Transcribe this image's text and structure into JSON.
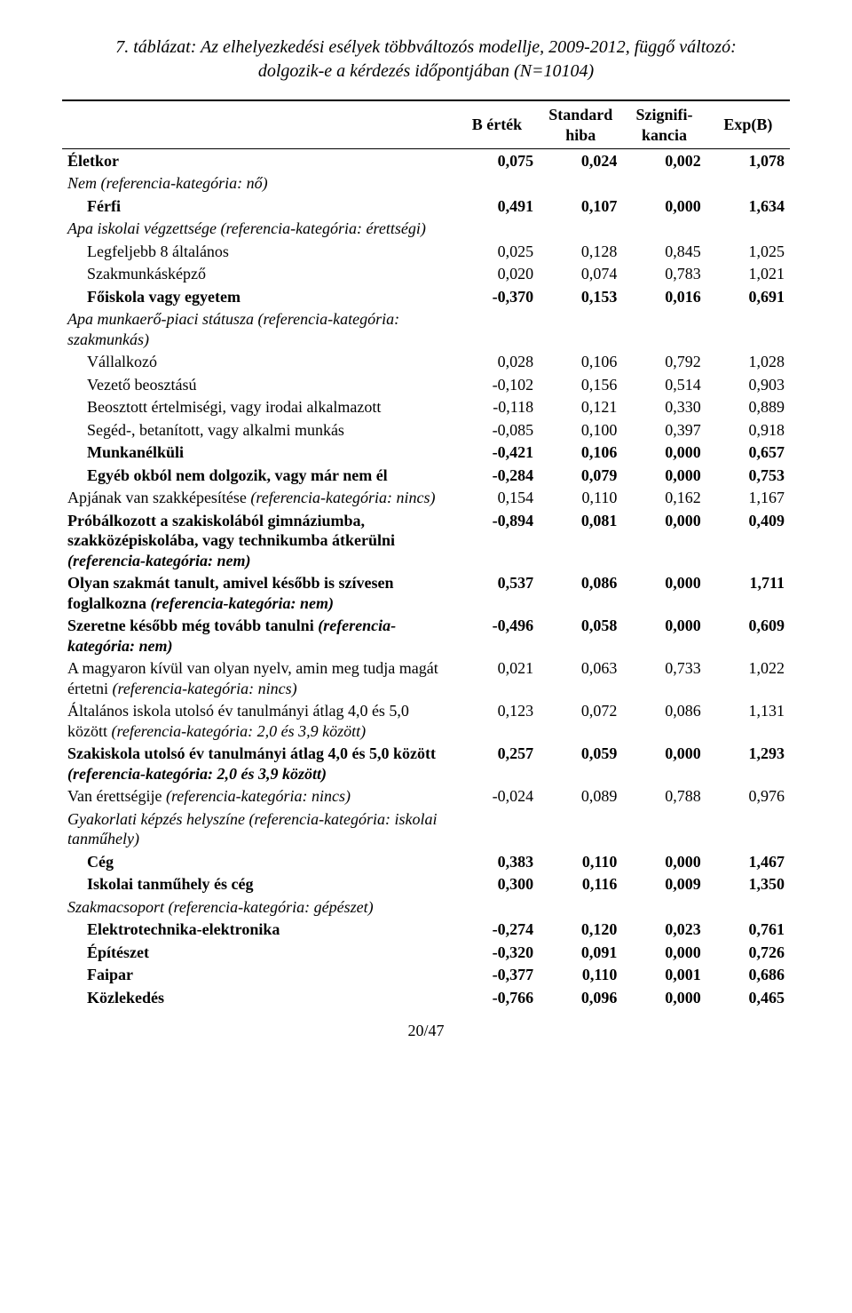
{
  "caption_line1": "7. táblázat: Az elhelyezkedési esélyek többváltozós modellje, 2009-2012, függő változó:",
  "caption_line2": "dolgozik-e a kérdezés időpontjában (N=10104)",
  "headers": {
    "c1": "B érték",
    "c2a": "Standard",
    "c2b": "hiba",
    "c3a": "Szignifi-",
    "c3b": "kancia",
    "c4": "Exp(B)"
  },
  "rows": [
    {
      "label": "Életkor",
      "level": 0,
      "bold": true,
      "b": "0,075",
      "se": "0,024",
      "sig": "0,002",
      "exp": "1,078"
    },
    {
      "label": "Nem (referencia-kategória: nő)",
      "level": 0,
      "italic": true
    },
    {
      "label": "Férfi",
      "level": 1,
      "bold": true,
      "b": "0,491",
      "se": "0,107",
      "sig": "0,000",
      "exp": "1,634"
    },
    {
      "label": "Apa iskolai végzettsége (referencia-kategória: érettségi)",
      "level": 0,
      "italic": true
    },
    {
      "label": "Legfeljebb 8 általános",
      "level": 1,
      "b": "0,025",
      "se": "0,128",
      "sig": "0,845",
      "exp": "1,025"
    },
    {
      "label": "Szakmunkásképző",
      "level": 1,
      "b": "0,020",
      "se": "0,074",
      "sig": "0,783",
      "exp": "1,021"
    },
    {
      "label": "Főiskola vagy egyetem",
      "level": 1,
      "bold": true,
      "b": "-0,370",
      "se": "0,153",
      "sig": "0,016",
      "exp": "0,691"
    },
    {
      "label": "Apa munkaerő-piaci státusza (referencia-kategória: szakmunkás)",
      "level": 0,
      "italic": true
    },
    {
      "label": "Vállalkozó",
      "level": 1,
      "b": "0,028",
      "se": "0,106",
      "sig": "0,792",
      "exp": "1,028"
    },
    {
      "label": "Vezető beosztású",
      "level": 1,
      "b": "-0,102",
      "se": "0,156",
      "sig": "0,514",
      "exp": "0,903"
    },
    {
      "label": "Beosztott értelmiségi, vagy irodai alkalmazott",
      "level": 1,
      "b": "-0,118",
      "se": "0,121",
      "sig": "0,330",
      "exp": "0,889"
    },
    {
      "label": "Segéd-, betanított, vagy alkalmi munkás",
      "level": 1,
      "b": "-0,085",
      "se": "0,100",
      "sig": "0,397",
      "exp": "0,918"
    },
    {
      "label": "Munkanélküli",
      "level": 1,
      "bold": true,
      "b": "-0,421",
      "se": "0,106",
      "sig": "0,000",
      "exp": "0,657"
    },
    {
      "label": "Egyéb okból nem dolgozik, vagy már nem él",
      "level": 1,
      "bold": true,
      "b": "-0,284",
      "se": "0,079",
      "sig": "0,000",
      "exp": "0,753"
    },
    {
      "label_html": "Apjának van szakképesítése <span class='italic'>(referencia-kategória: nincs)</span>",
      "level": 0,
      "b": "0,154",
      "se": "0,110",
      "sig": "0,162",
      "exp": "1,167"
    },
    {
      "label_html": "<span class='bold'>Próbálkozott a szakiskolából gimnáziumba, szakközépiskolába, vagy technikumba átkerülni</span> <span class='italic'>(referencia-kategória: nem)</span>",
      "level": 0,
      "bold": true,
      "b": "-0,894",
      "se": "0,081",
      "sig": "0,000",
      "exp": "0,409"
    },
    {
      "label_html": "<span class='bold'>Olyan szakmát tanult, amivel később is szívesen foglalkozna</span> <span class='italic'>(referencia-kategória: nem)</span>",
      "level": 0,
      "bold": true,
      "b": "0,537",
      "se": "0,086",
      "sig": "0,000",
      "exp": "1,711"
    },
    {
      "label_html": "<span class='bold'>Szeretne később még tovább tanulni</span> <span class='italic'>(referencia-kategória: nem)</span>",
      "level": 0,
      "bold": true,
      "b": "-0,496",
      "se": "0,058",
      "sig": "0,000",
      "exp": "0,609"
    },
    {
      "label_html": "A magyaron kívül van olyan nyelv, amin meg tudja magát értetni <span class='italic'>(referencia-kategória: nincs)</span>",
      "level": 0,
      "b": "0,021",
      "se": "0,063",
      "sig": "0,733",
      "exp": "1,022"
    },
    {
      "label_html": "Általános iskola utolsó év tanulmányi átlag 4,0 és 5,0 között <span class='italic'>(referencia-kategória: 2,0 és 3,9 között)</span>",
      "level": 0,
      "b": "0,123",
      "se": "0,072",
      "sig": "0,086",
      "exp": "1,131"
    },
    {
      "label_html": "<span class='bold'>Szakiskola utolsó év tanulmányi átlag 4,0 és 5,0 között</span> <span class='italic'>(referencia-kategória: 2,0 és 3,9 között)</span>",
      "level": 0,
      "bold": true,
      "b": "0,257",
      "se": "0,059",
      "sig": "0,000",
      "exp": "1,293"
    },
    {
      "label_html": "Van érettségije <span class='italic'>(referencia-kategória: nincs)</span>",
      "level": 0,
      "b": "-0,024",
      "se": "0,089",
      "sig": "0,788",
      "exp": "0,976"
    },
    {
      "label_html": "<span class='italic'>Gyakorlati képzés helyszíne (referencia-kategória: iskolai tanműhely)</span>",
      "level": 0
    },
    {
      "label": "Cég",
      "level": 1,
      "bold": true,
      "b": "0,383",
      "se": "0,110",
      "sig": "0,000",
      "exp": "1,467"
    },
    {
      "label": "Iskolai tanműhely és cég",
      "level": 1,
      "bold": true,
      "b": "0,300",
      "se": "0,116",
      "sig": "0,009",
      "exp": "1,350"
    },
    {
      "label": "Szakmacsoport (referencia-kategória: gépészet)",
      "level": 0,
      "italic": true
    },
    {
      "label": "Elektrotechnika-elektronika",
      "level": 1,
      "bold": true,
      "b": "-0,274",
      "se": "0,120",
      "sig": "0,023",
      "exp": "0,761"
    },
    {
      "label": "Építészet",
      "level": 1,
      "bold": true,
      "b": "-0,320",
      "se": "0,091",
      "sig": "0,000",
      "exp": "0,726"
    },
    {
      "label": "Faipar",
      "level": 1,
      "bold": true,
      "b": "-0,377",
      "se": "0,110",
      "sig": "0,001",
      "exp": "0,686"
    },
    {
      "label": "Közlekedés",
      "level": 1,
      "bold": true,
      "b": "-0,766",
      "se": "0,096",
      "sig": "0,000",
      "exp": "0,465"
    }
  ],
  "page_number": "20/47"
}
